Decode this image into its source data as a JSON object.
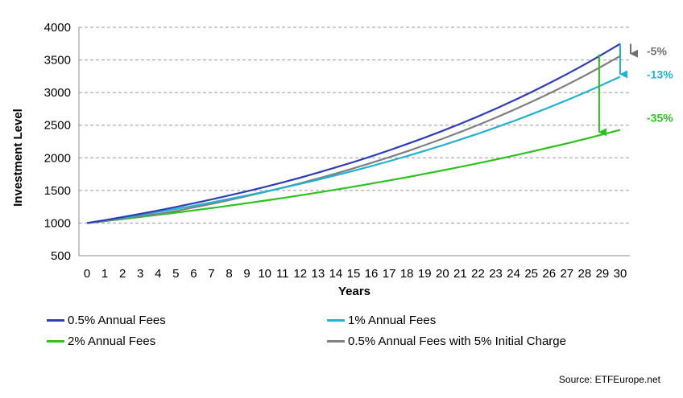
{
  "chart_data": {
    "type": "line",
    "title": "",
    "xlabel": "Years",
    "ylabel": "Investment Level",
    "xlim": [
      0,
      30
    ],
    "ylim": [
      500,
      4000
    ],
    "yticks": [
      500,
      1000,
      1500,
      2000,
      2500,
      3000,
      3500,
      4000
    ],
    "x": [
      0,
      1,
      2,
      3,
      4,
      5,
      6,
      7,
      8,
      9,
      10,
      11,
      12,
      13,
      14,
      15,
      16,
      17,
      18,
      19,
      20,
      21,
      22,
      23,
      24,
      25,
      26,
      27,
      28,
      29,
      30
    ],
    "grid": "horizontal dashed",
    "legend_position": "bottom",
    "series": [
      {
        "name": "0.5% Annual Fees",
        "color": "#2e3cb5",
        "values": [
          1000,
          1045,
          1092,
          1141,
          1193,
          1247,
          1303,
          1361,
          1423,
          1487,
          1553,
          1623,
          1696,
          1773,
          1853,
          1936,
          2023,
          2114,
          2210,
          2309,
          2413,
          2521,
          2635,
          2753,
          2877,
          3007,
          3142,
          3283,
          3431,
          3586,
          3747
        ]
      },
      {
        "name": "1% Annual Fees",
        "color": "#22b2cf",
        "values": [
          1000,
          1040,
          1082,
          1125,
          1170,
          1217,
          1265,
          1316,
          1369,
          1423,
          1480,
          1539,
          1601,
          1665,
          1732,
          1801,
          1873,
          1948,
          2026,
          2107,
          2191,
          2279,
          2370,
          2465,
          2563,
          2666,
          2772,
          2883,
          2999,
          3119,
          3243
        ]
      },
      {
        "name": "2% Annual Fees",
        "color": "#2cc21f",
        "values": [
          1000,
          1030,
          1061,
          1093,
          1126,
          1159,
          1194,
          1230,
          1267,
          1305,
          1344,
          1384,
          1426,
          1469,
          1513,
          1558,
          1605,
          1653,
          1702,
          1754,
          1806,
          1860,
          1916,
          1974,
          2033,
          2094,
          2157,
          2221,
          2288,
          2357,
          2427
        ]
      },
      {
        "name": "0.5% Annual Fees with 5% Initial Charge",
        "color": "#808080",
        "values": [
          1000,
          1030,
          1068,
          1109,
          1140,
          1185,
          1238,
          1293,
          1352,
          1413,
          1476,
          1542,
          1611,
          1684,
          1760,
          1839,
          1922,
          2008,
          2099,
          2194,
          2292,
          2395,
          2503,
          2615,
          2733,
          2857,
          2985,
          3119,
          3259,
          3407,
          3560
        ]
      }
    ],
    "annotations": [
      {
        "text": "-5%",
        "color": "#707070",
        "at_year": 30,
        "from": 3747,
        "to": 3560
      },
      {
        "text": "-13%",
        "color": "#22b2cf",
        "at_year": 30,
        "from": 3747,
        "to": 3243
      },
      {
        "text": "-35%",
        "color": "#2cc21f",
        "at_year": 29,
        "from": 3586,
        "to": 2357
      }
    ]
  },
  "source": "Source: ETFEurope.net"
}
